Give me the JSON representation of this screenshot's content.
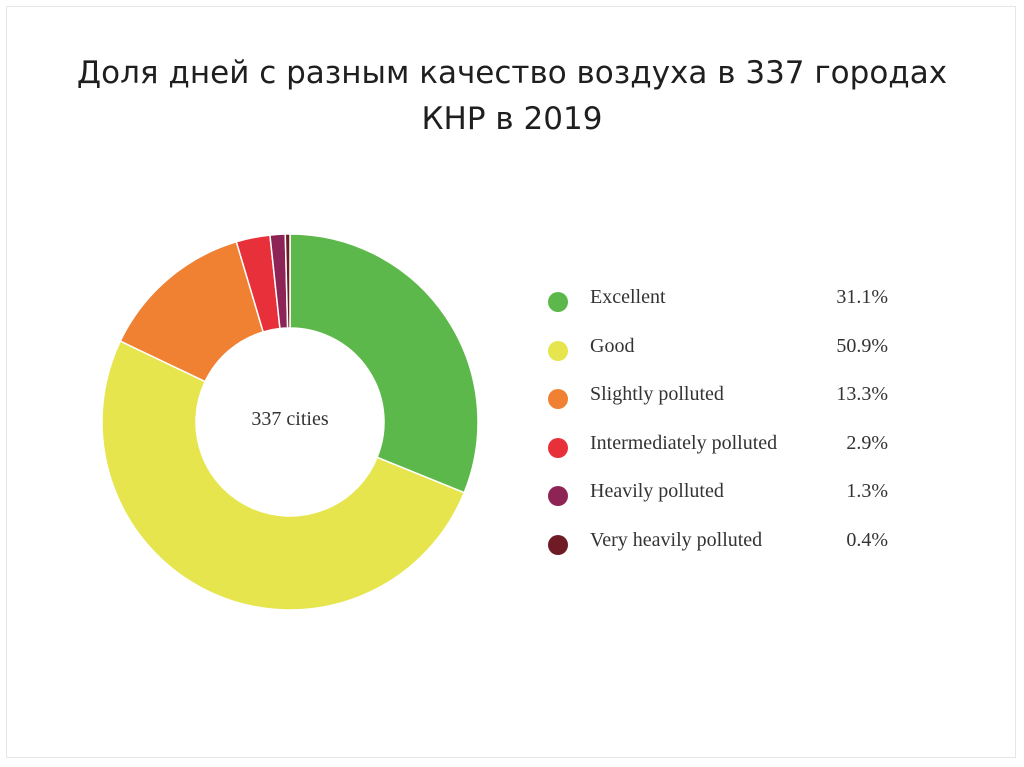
{
  "title": {
    "line1": "Доля дней с разным качество воздуха в 337 городах",
    "line2": "КНР в 2019"
  },
  "chart_data": {
    "type": "pie",
    "variant": "donut",
    "center_label": "337 cities",
    "legend_placement": "right",
    "unit": "%",
    "categories": [
      "Excellent",
      "Good",
      "Slightly polluted",
      "Intermediately polluted",
      "Heavily polluted",
      "Very heavily polluted"
    ],
    "values": [
      31.1,
      50.9,
      13.3,
      2.9,
      1.3,
      0.4
    ],
    "value_labels": [
      "31.1%",
      "50.9%",
      "13.3%",
      "2.9%",
      "1.3%",
      "0.4%"
    ],
    "colors": [
      "#5cb84a",
      "#e6e54e",
      "#f08032",
      "#e8303a",
      "#8e2456",
      "#6e1b25"
    ]
  }
}
